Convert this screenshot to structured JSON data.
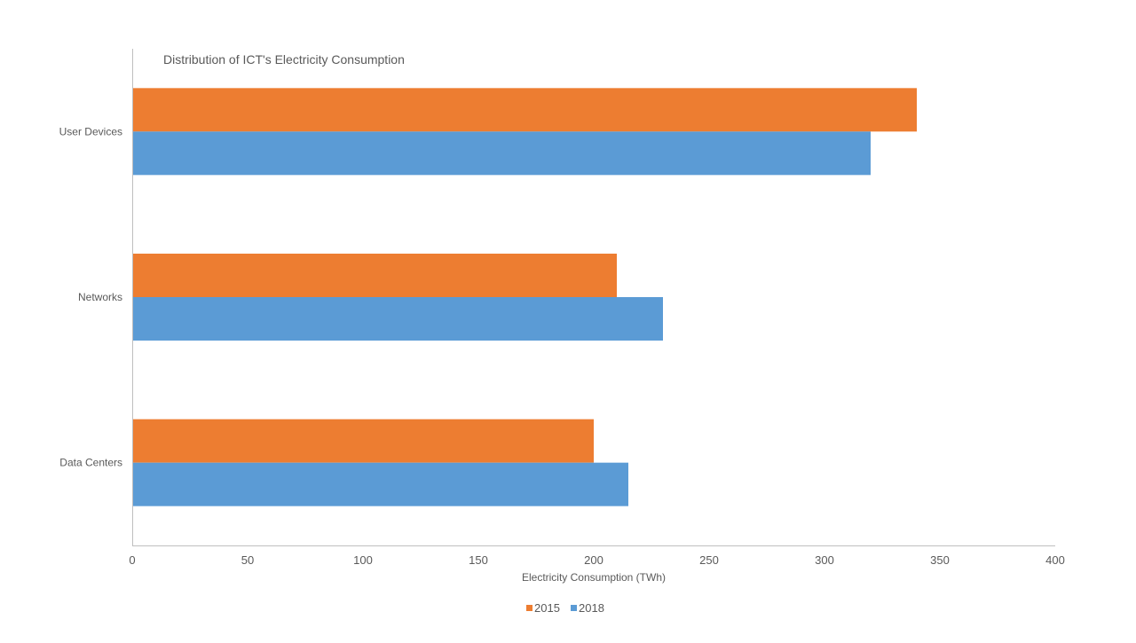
{
  "chart_data": {
    "type": "bar",
    "orientation": "horizontal",
    "title": "Distribution of ICT's Electricity Consumption",
    "xlabel": "Electricity Consumption (TWh)",
    "ylabel": "",
    "categories": [
      "User Devices",
      "Networks",
      "Data Centers"
    ],
    "series": [
      {
        "name": "2015",
        "values": [
          340,
          210,
          200
        ],
        "color": "#ED7D31"
      },
      {
        "name": "2018",
        "values": [
          320,
          230,
          215
        ],
        "color": "#5B9BD5"
      }
    ],
    "xlim": [
      0,
      400
    ],
    "xticks": [
      0,
      50,
      100,
      150,
      200,
      250,
      300,
      350,
      400
    ],
    "grid": false,
    "legend": "bottom"
  }
}
